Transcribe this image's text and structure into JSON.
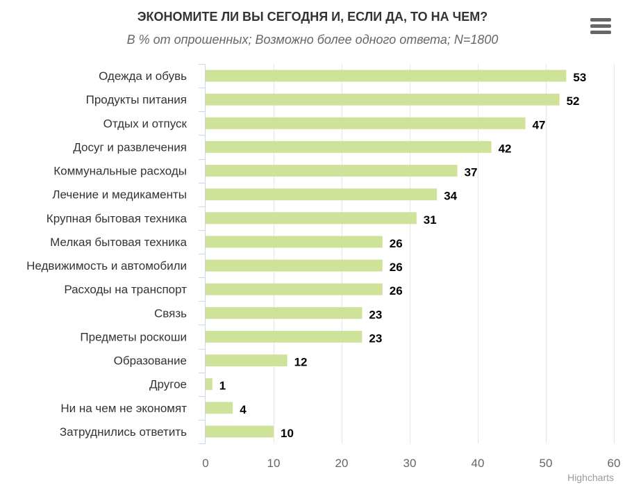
{
  "chart_data": {
    "type": "bar",
    "orientation": "horizontal",
    "title": "ЭКОНОМИТЕ ЛИ ВЫ СЕГОДНЯ И, ЕСЛИ ДА, ТО НА ЧЕМ?",
    "subtitle": "В % от опрошенных; Возможно более одного ответа; N=1800",
    "categories": [
      "Одежда и обувь",
      "Продукты питания",
      "Отдых и отпуск",
      "Досуг и развлечения",
      "Коммунальные расходы",
      "Лечение и медикаменты",
      "Крупная бытовая техника",
      "Мелкая бытовая техника",
      "Недвижимость и автомобили",
      "Расходы на транспорт",
      "Связь",
      "Предметы роскоши",
      "Образование",
      "Другое",
      "Ни на чем не экономят",
      "Затруднились ответить"
    ],
    "values": [
      53,
      52,
      47,
      42,
      37,
      34,
      31,
      26,
      26,
      26,
      23,
      23,
      12,
      1,
      4,
      10
    ],
    "xlim": [
      0,
      60
    ],
    "xticks": [
      0,
      10,
      20,
      30,
      40,
      50,
      60
    ],
    "grid": true,
    "colors": {
      "bar": "#cfe29a",
      "grid": "#e6e6e6",
      "axis": "#ccd6eb",
      "label": "#333333",
      "tick": "#666666",
      "data_label": "#000000"
    }
  },
  "ui": {
    "menu_icon": "hamburger-menu-icon",
    "credits": "Highcharts"
  }
}
